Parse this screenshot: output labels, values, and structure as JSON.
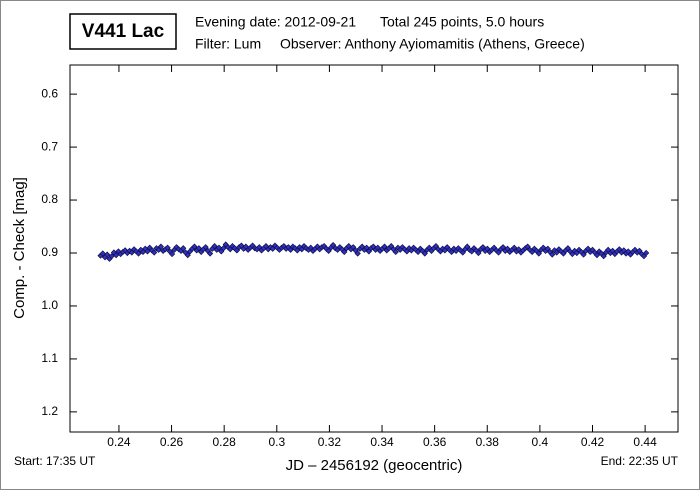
{
  "chart_data": {
    "type": "scatter",
    "title": "V441 Lac",
    "evening_date": "Evening date: 2012-09-21",
    "total": "Total 245 points, 5.0 hours",
    "filter": "Filter: Lum",
    "observer": "Observer: Anthony Ayiomamitis (Athens, Greece)",
    "x_label": "JD – 2456192  (geocentric)",
    "y_label": "Comp. - Check [mag]",
    "start": "Start: 17:35 UT",
    "end": "End: 22:35 UT",
    "color": "#3030c8",
    "y_inverted": true,
    "xlim": [
      0.2214,
      0.4525
    ],
    "ylim": [
      0.545,
      1.238
    ],
    "xticks": [
      0.24,
      0.26,
      0.28,
      0.3,
      0.32,
      0.34,
      0.36,
      0.38,
      0.4,
      0.42,
      0.44
    ],
    "yticks": [
      0.6,
      0.7,
      0.8,
      0.9,
      {
        "value": 1,
        "label": "1.0"
      },
      1.1,
      1.2
    ],
    "x": [
      0.233,
      0.23385,
      0.2347,
      0.23555,
      0.2364,
      0.23725,
      0.2381,
      0.23895,
      0.2398,
      0.24065,
      0.2415,
      0.24235,
      0.2432,
      0.24405,
      0.2449,
      0.24575,
      0.2466,
      0.24745,
      0.2483,
      0.24915,
      0.25,
      0.25085,
      0.2517,
      0.25255,
      0.2534,
      0.25425,
      0.2551,
      0.25595,
      0.2568,
      0.25765,
      0.2585,
      0.25935,
      0.2602,
      0.26105,
      0.2619,
      0.26275,
      0.2636,
      0.26445,
      0.2653,
      0.26615,
      0.267,
      0.26785,
      0.2687,
      0.26955,
      0.2704,
      0.27125,
      0.2721,
      0.27295,
      0.2738,
      0.27465,
      0.2755,
      0.27635,
      0.2772,
      0.27805,
      0.2789,
      0.27975,
      0.2806,
      0.28145,
      0.2823,
      0.28315,
      0.284,
      0.28485,
      0.2857,
      0.28655,
      0.2874,
      0.28825,
      0.2891,
      0.28995,
      0.2908,
      0.29165,
      0.2925,
      0.29335,
      0.2942,
      0.29505,
      0.2959,
      0.29675,
      0.2976,
      0.29845,
      0.2993,
      0.30015,
      0.301,
      0.30185,
      0.3027,
      0.30355,
      0.3044,
      0.30525,
      0.3061,
      0.30695,
      0.3078,
      0.30865,
      0.3095,
      0.31035,
      0.3112,
      0.31205,
      0.3129,
      0.31375,
      0.3146,
      0.31545,
      0.3163,
      0.31715,
      0.318,
      0.31885,
      0.3197,
      0.32055,
      0.3214,
      0.32225,
      0.3231,
      0.32395,
      0.3248,
      0.32565,
      0.3265,
      0.32735,
      0.3282,
      0.32905,
      0.3299,
      0.33075,
      0.3316,
      0.33245,
      0.3333,
      0.33415,
      0.335,
      0.33585,
      0.3367,
      0.33755,
      0.3384,
      0.33925,
      0.3401,
      0.34095,
      0.3418,
      0.34265,
      0.3435,
      0.34435,
      0.3452,
      0.34605,
      0.3469,
      0.34775,
      0.3486,
      0.34945,
      0.3503,
      0.35115,
      0.352,
      0.35285,
      0.3537,
      0.35455,
      0.3554,
      0.35625,
      0.3571,
      0.35795,
      0.3588,
      0.35965,
      0.3605,
      0.36135,
      0.3622,
      0.36305,
      0.3639,
      0.36475,
      0.3656,
      0.36645,
      0.3673,
      0.36815,
      0.369,
      0.36985,
      0.3707,
      0.37155,
      0.3724,
      0.37325,
      0.3741,
      0.37495,
      0.3758,
      0.37665,
      0.3775,
      0.37835,
      0.3792,
      0.38005,
      0.3809,
      0.38175,
      0.3826,
      0.38345,
      0.3843,
      0.38515,
      0.386,
      0.38685,
      0.3877,
      0.38855,
      0.3894,
      0.39025,
      0.3911,
      0.39195,
      0.3928,
      0.39365,
      0.3945,
      0.39535,
      0.3962,
      0.39705,
      0.3979,
      0.39875,
      0.3996,
      0.40045,
      0.4013,
      0.40215,
      0.403,
      0.40385,
      0.4047,
      0.40555,
      0.4064,
      0.40725,
      0.4081,
      0.40895,
      0.4098,
      0.41065,
      0.4115,
      0.41235,
      0.4132,
      0.41405,
      0.4149,
      0.41575,
      0.4166,
      0.41745,
      0.4183,
      0.41915,
      0.42,
      0.42085,
      0.4217,
      0.42255,
      0.4234,
      0.42425,
      0.4251,
      0.42595,
      0.4268,
      0.42765,
      0.4285,
      0.42935,
      0.4302,
      0.43105,
      0.4319,
      0.43275,
      0.4336,
      0.43445,
      0.4353,
      0.43615,
      0.437,
      0.43785,
      0.4387,
      0.43955,
      0.4404
    ],
    "values": [
      0.905,
      0.901,
      0.908,
      0.903,
      0.911,
      0.906,
      0.899,
      0.904,
      0.897,
      0.902,
      0.898,
      0.895,
      0.9,
      0.896,
      0.899,
      0.893,
      0.897,
      0.901,
      0.894,
      0.898,
      0.892,
      0.897,
      0.89,
      0.895,
      0.899,
      0.891,
      0.894,
      0.888,
      0.896,
      0.893,
      0.89,
      0.897,
      0.902,
      0.894,
      0.889,
      0.893,
      0.896,
      0.891,
      0.899,
      0.904,
      0.897,
      0.892,
      0.888,
      0.895,
      0.891,
      0.898,
      0.893,
      0.889,
      0.896,
      0.901,
      0.892,
      0.887,
      0.894,
      0.89,
      0.897,
      0.891,
      0.884,
      0.889,
      0.893,
      0.887,
      0.891,
      0.895,
      0.889,
      0.886,
      0.892,
      0.888,
      0.894,
      0.89,
      0.886,
      0.891,
      0.893,
      0.889,
      0.895,
      0.891,
      0.887,
      0.893,
      0.889,
      0.892,
      0.886,
      0.89,
      0.894,
      0.89,
      0.887,
      0.892,
      0.889,
      0.894,
      0.888,
      0.891,
      0.895,
      0.889,
      0.893,
      0.887,
      0.891,
      0.894,
      0.89,
      0.896,
      0.892,
      0.888,
      0.893,
      0.889,
      0.887,
      0.892,
      0.896,
      0.89,
      0.885,
      0.891,
      0.894,
      0.889,
      0.893,
      0.898,
      0.891,
      0.887,
      0.893,
      0.889,
      0.895,
      0.901,
      0.892,
      0.888,
      0.894,
      0.89,
      0.897,
      0.891,
      0.888,
      0.894,
      0.89,
      0.896,
      0.892,
      0.888,
      0.895,
      0.891,
      0.887,
      0.893,
      0.898,
      0.89,
      0.894,
      0.889,
      0.893,
      0.897,
      0.891,
      0.895,
      0.89,
      0.894,
      0.898,
      0.892,
      0.896,
      0.901,
      0.894,
      0.89,
      0.896,
      0.891,
      0.887,
      0.893,
      0.897,
      0.892,
      0.895,
      0.889,
      0.894,
      0.898,
      0.892,
      0.896,
      0.891,
      0.895,
      0.899,
      0.893,
      0.888,
      0.894,
      0.897,
      0.891,
      0.895,
      0.9,
      0.893,
      0.889,
      0.896,
      0.892,
      0.898,
      0.894,
      0.89,
      0.895,
      0.899,
      0.893,
      0.889,
      0.896,
      0.892,
      0.898,
      0.894,
      0.89,
      0.897,
      0.893,
      0.899,
      0.895,
      0.891,
      0.888,
      0.894,
      0.898,
      0.892,
      0.896,
      0.901,
      0.894,
      0.89,
      0.896,
      0.892,
      0.898,
      0.903,
      0.895,
      0.899,
      0.893,
      0.897,
      0.901,
      0.895,
      0.891,
      0.897,
      0.902,
      0.896,
      0.9,
      0.894,
      0.898,
      0.903,
      0.896,
      0.892,
      0.898,
      0.894,
      0.899,
      0.904,
      0.897,
      0.901,
      0.906,
      0.899,
      0.894,
      0.9,
      0.896,
      0.902,
      0.897,
      0.893,
      0.899,
      0.895,
      0.901,
      0.897,
      0.903,
      0.898,
      0.894,
      0.899,
      0.896,
      0.902,
      0.906,
      0.9
    ]
  }
}
